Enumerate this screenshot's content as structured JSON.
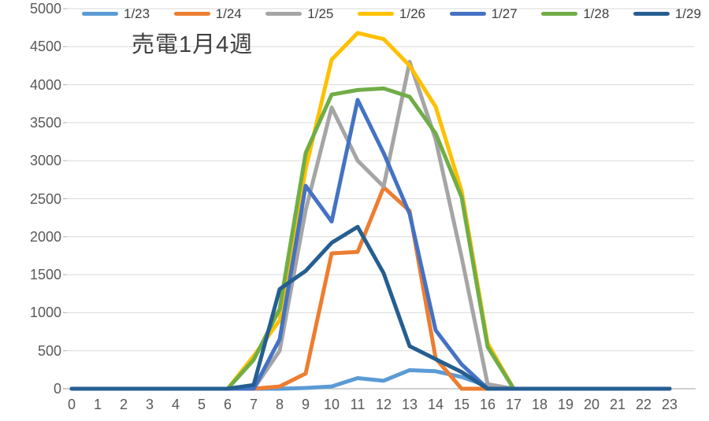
{
  "title": "売電1月4週",
  "chart_data": {
    "type": "line",
    "title": "売電1月4週",
    "x": [
      0,
      1,
      2,
      3,
      4,
      5,
      6,
      7,
      8,
      9,
      10,
      11,
      12,
      13,
      14,
      15,
      16,
      17,
      18,
      19,
      20,
      21,
      22,
      23
    ],
    "x_ticks": [
      "0",
      "1",
      "2",
      "3",
      "4",
      "5",
      "6",
      "7",
      "8",
      "9",
      "10",
      "11",
      "12",
      "13",
      "14",
      "15",
      "16",
      "17",
      "18",
      "19",
      "20",
      "21",
      "22",
      "23"
    ],
    "y_ticks": [
      0,
      500,
      1000,
      1500,
      2000,
      2500,
      3000,
      3500,
      4000,
      4500,
      5000
    ],
    "ylim": [
      0,
      5000
    ],
    "xlabel": "",
    "ylabel": "",
    "grid": "horizontal",
    "legend_position": "top",
    "colors": {
      "axis_line": "#BFBFBF",
      "gridline": "#D9D9D9",
      "tick_label": "#595959",
      "legend_text": "#404040"
    },
    "series": [
      {
        "name": "1/23",
        "color": "#5B9BD5",
        "values": [
          0,
          0,
          0,
          0,
          0,
          0,
          0,
          0,
          0,
          10,
          30,
          140,
          105,
          245,
          230,
          155,
          35,
          0,
          0,
          0,
          0,
          0,
          0,
          0
        ]
      },
      {
        "name": "1/24",
        "color": "#ED7D31",
        "values": [
          0,
          0,
          0,
          0,
          0,
          0,
          0,
          0,
          30,
          200,
          1780,
          1800,
          2650,
          2340,
          400,
          0,
          0,
          0,
          0,
          0,
          0,
          0,
          0,
          0
        ]
      },
      {
        "name": "1/25",
        "color": "#A5A5A5",
        "values": [
          0,
          0,
          0,
          0,
          0,
          0,
          0,
          0,
          500,
          2350,
          3700,
          3000,
          2660,
          4300,
          3280,
          1730,
          60,
          0,
          0,
          0,
          0,
          0,
          0,
          0
        ]
      },
      {
        "name": "1/26",
        "color": "#FFC000",
        "values": [
          0,
          0,
          0,
          0,
          0,
          0,
          0,
          430,
          900,
          2890,
          4330,
          4680,
          4600,
          4250,
          3710,
          2600,
          600,
          0,
          0,
          0,
          0,
          0,
          0,
          0
        ]
      },
      {
        "name": "1/27",
        "color": "#4472C4",
        "values": [
          0,
          0,
          0,
          0,
          0,
          0,
          0,
          0,
          650,
          2670,
          2200,
          3800,
          3100,
          2300,
          770,
          320,
          0,
          0,
          0,
          0,
          0,
          0,
          0,
          0
        ]
      },
      {
        "name": "1/28",
        "color": "#70AD47",
        "values": [
          0,
          0,
          0,
          0,
          0,
          0,
          0,
          380,
          1050,
          3100,
          3870,
          3930,
          3950,
          3840,
          3360,
          2520,
          550,
          0,
          0,
          0,
          0,
          0,
          0,
          0
        ]
      },
      {
        "name": "1/29",
        "color": "#255E91",
        "values": [
          0,
          0,
          0,
          0,
          0,
          0,
          0,
          50,
          1310,
          1550,
          1920,
          2130,
          1520,
          560,
          390,
          220,
          0,
          0,
          0,
          0,
          0,
          0,
          0,
          0
        ]
      }
    ]
  }
}
